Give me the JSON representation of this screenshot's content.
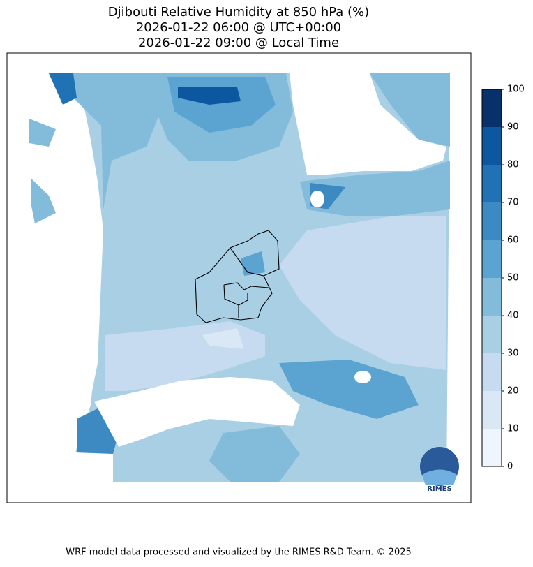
{
  "title_lines": [
    "Djibouti Relative Humidity at 850 hPa (%)",
    "2026-01-22 06:00 @ UTC+00:00",
    "2026-01-22 09:00 @ Local Time"
  ],
  "colorbar": {
    "levels": [
      0,
      10,
      20,
      30,
      40,
      50,
      60,
      70,
      80,
      90,
      100
    ],
    "colors": [
      "#eef5fc",
      "#dae8f6",
      "#c6dbef",
      "#a9cfe5",
      "#83bbdb",
      "#5ba3d0",
      "#3d8ac3",
      "#2171b5",
      "#0d57a1",
      "#08306b"
    ]
  },
  "logo_text": "RIMES",
  "footer": "WRF model data processed and visualized by the RIMES R&D Team. © 2025"
}
